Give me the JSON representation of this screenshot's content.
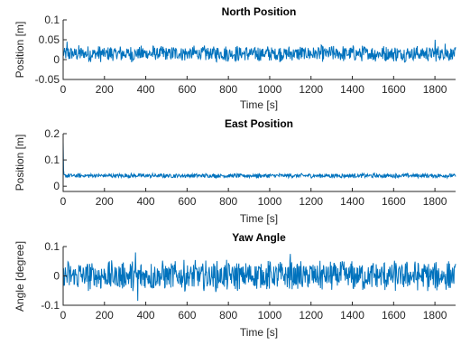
{
  "chart_data": [
    {
      "type": "line",
      "title": "North Position",
      "xlabel": "Time [s]",
      "ylabel": "Position [m]",
      "xlim": [
        0,
        1900
      ],
      "ylim": [
        -0.05,
        0.1
      ],
      "xticks": [
        0,
        200,
        400,
        600,
        800,
        1000,
        1200,
        1400,
        1600,
        1800
      ],
      "yticks": [
        -0.05,
        0,
        0.05,
        0.1
      ],
      "ytick_labels": [
        "-0.05",
        "0",
        "0.05",
        "0.1"
      ],
      "series": [
        {
          "center": 0.015,
          "amplitude": 0.022,
          "spikes": [
            [
              20,
              0.045
            ],
            [
              1800,
              0.05
            ],
            [
              1850,
              0.04
            ]
          ],
          "color": "#0072BD"
        }
      ]
    },
    {
      "type": "line",
      "title": "East Position",
      "xlabel": "Time [s]",
      "ylabel": "Position [m]",
      "xlim": [
        0,
        1900
      ],
      "ylim": [
        -0.02,
        0.2
      ],
      "xticks": [
        0,
        200,
        400,
        600,
        800,
        1000,
        1200,
        1400,
        1600,
        1800
      ],
      "yticks": [
        0,
        0.1,
        0.2
      ],
      "ytick_labels": [
        "0",
        "0.1",
        "0.2"
      ],
      "series": [
        {
          "center": 0.04,
          "amplitude": 0.009,
          "spikes": [
            [
              0,
              0.17
            ],
            [
              2,
              0.06
            ]
          ],
          "color": "#0072BD"
        }
      ]
    },
    {
      "type": "line",
      "title": "Yaw Angle",
      "xlabel": "Time [s]",
      "ylabel": "Angle [degree]",
      "xlim": [
        0,
        1900
      ],
      "ylim": [
        -0.1,
        0.1
      ],
      "xticks": [
        0,
        200,
        400,
        600,
        800,
        1000,
        1200,
        1400,
        1600,
        1800
      ],
      "yticks": [
        -0.1,
        0,
        0.1
      ],
      "ytick_labels": [
        "-0.1",
        "0",
        "0.1"
      ],
      "series": [
        {
          "center": 0.0,
          "amplitude": 0.055,
          "spikes": [
            [
              350,
              0.08
            ],
            [
              1100,
              0.075
            ],
            [
              360,
              -0.085
            ]
          ],
          "color": "#0072BD"
        }
      ]
    }
  ]
}
